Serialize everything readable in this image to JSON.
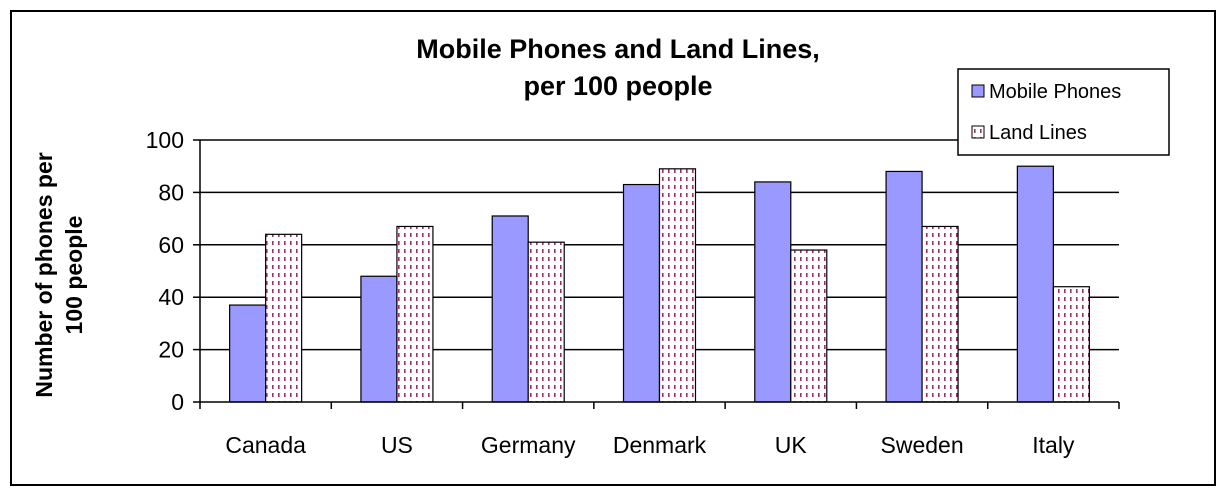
{
  "chart_data": {
    "type": "bar",
    "title_lines": [
      "Mobile Phones and Land Lines,",
      "per 100 people"
    ],
    "xlabel": "",
    "ylabel_lines": [
      "Number of phones per",
      "100 people"
    ],
    "ylim": [
      0,
      100
    ],
    "yticks": [
      0,
      20,
      40,
      60,
      80,
      100
    ],
    "grid": true,
    "legend_position": "top-right",
    "categories": [
      "Canada",
      "US",
      "Germany",
      "Denmark",
      "UK",
      "Sweden",
      "Italy"
    ],
    "series": [
      {
        "name": "Mobile Phones",
        "values": [
          37,
          48,
          71,
          83,
          84,
          88,
          90
        ]
      },
      {
        "name": "Land Lines",
        "values": [
          64,
          67,
          61,
          89,
          58,
          67,
          44
        ]
      }
    ],
    "colors": {
      "mobile": "#9999ff",
      "landline_dots": "#993366",
      "grid": "#000000"
    }
  }
}
